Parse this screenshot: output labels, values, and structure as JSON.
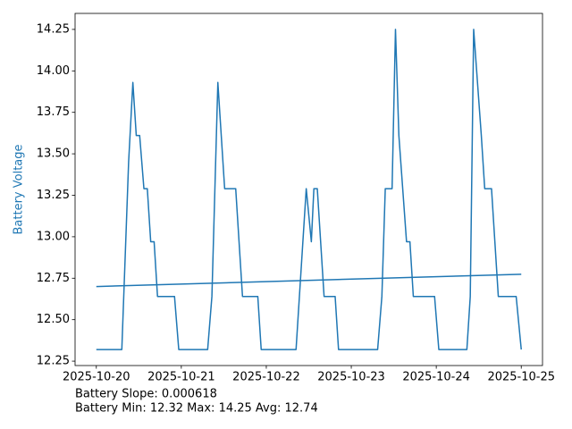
{
  "chart_data": {
    "type": "line",
    "ylabel": "Battery Voltage",
    "ylabel_color": "#1f77b4",
    "annotations": [
      "Battery Slope: 0.000618",
      "Battery Min: 12.32 Max: 14.25 Avg: 12.74"
    ],
    "xlim": [
      -0.25,
      5.25
    ],
    "xticks": [
      {
        "value": 0,
        "label": "2025-10-20"
      },
      {
        "value": 1,
        "label": "2025-10-21"
      },
      {
        "value": 2,
        "label": "2025-10-22"
      },
      {
        "value": 3,
        "label": "2025-10-23"
      },
      {
        "value": 4,
        "label": "2025-10-24"
      },
      {
        "value": 5,
        "label": "2025-10-25"
      }
    ],
    "ylim": [
      12.2235,
      14.3465
    ],
    "yticks": [
      12.25,
      {
        "value": 12.5,
        "label": "12.50"
      },
      12.75,
      {
        "value": 13.0,
        "label": "13.00"
      },
      13.25,
      {
        "value": 13.5,
        "label": "13.50"
      },
      13.75,
      {
        "value": 14.0,
        "label": "14.00"
      },
      14.25
    ],
    "series": [
      {
        "color": "#1f77b4",
        "x": [
          0,
          0.3,
          0.38,
          0.43,
          0.47,
          0.51,
          0.56,
          0.6,
          0.64,
          0.68,
          0.72,
          0.92,
          0.97,
          1.31,
          1.36,
          1.43,
          1.51,
          1.64,
          1.72,
          1.9,
          1.94,
          2.35,
          2.47,
          2.53,
          2.56,
          2.6,
          2.68,
          2.81,
          2.85,
          3.31,
          3.36,
          3.4,
          3.48,
          3.52,
          3.56,
          3.65,
          3.69,
          3.73,
          3.98,
          4.03,
          4.36,
          4.4,
          4.44,
          4.53,
          4.57,
          4.65,
          4.73,
          4.94,
          5.0
        ],
        "values": [
          12.32,
          12.32,
          13.45,
          13.93,
          13.61,
          13.61,
          13.29,
          13.29,
          12.97,
          12.97,
          12.64,
          12.64,
          12.32,
          12.32,
          12.64,
          13.93,
          13.29,
          13.29,
          12.64,
          12.64,
          12.32,
          12.32,
          13.29,
          12.97,
          13.29,
          13.29,
          12.64,
          12.64,
          12.32,
          12.32,
          12.64,
          13.29,
          13.29,
          14.25,
          13.61,
          12.97,
          12.97,
          12.64,
          12.64,
          12.32,
          12.32,
          12.64,
          14.25,
          13.61,
          13.29,
          13.29,
          12.64,
          12.64,
          12.32
        ]
      },
      {
        "color": "#1f77b4",
        "x": [
          0,
          5
        ],
        "values": [
          12.7,
          12.774
        ]
      }
    ]
  }
}
